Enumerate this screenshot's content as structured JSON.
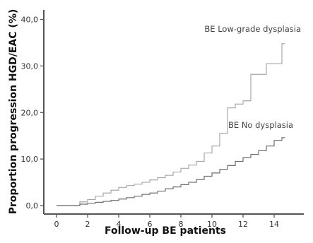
{
  "chart_data": {
    "type": "line",
    "title": "",
    "xlabel": "Follow-up BE patients",
    "ylabel": "Proportion progression HGD/EAC (%)",
    "xlim": [
      -0.3,
      14.9
    ],
    "ylim": [
      0,
      42
    ],
    "xticks": [
      0,
      2,
      4,
      6,
      8,
      10,
      12,
      14
    ],
    "xtick_labels": [
      "0",
      "2",
      "4",
      "6",
      "8",
      "10",
      "12",
      "14"
    ],
    "yticks": [
      0,
      10,
      20,
      30,
      40
    ],
    "ytick_labels": [
      "0,0",
      "10,0",
      "20,0",
      "30,0",
      "40,0"
    ],
    "grid": false,
    "step": true,
    "series": [
      {
        "name": "BE Low-grade dysplasia",
        "color": "#a8a8a8",
        "x": [
          0,
          1.0,
          1.5,
          2.0,
          2.5,
          3.0,
          3.5,
          4.0,
          4.5,
          5.0,
          5.5,
          6.0,
          6.5,
          7.0,
          7.5,
          8.0,
          8.5,
          9.0,
          9.5,
          10.0,
          10.5,
          11.0,
          11.5,
          12.0,
          12.5,
          13.0,
          13.5,
          14.0,
          14.5,
          14.7
        ],
        "y": [
          0,
          0,
          0.8,
          1.3,
          2.0,
          2.7,
          3.3,
          3.9,
          4.3,
          4.6,
          5.0,
          5.5,
          6.0,
          6.5,
          7.2,
          8.0,
          8.7,
          9.5,
          11.3,
          12.8,
          15.5,
          21.0,
          21.8,
          22.5,
          28.2,
          28.2,
          30.5,
          30.5,
          34.8,
          34.8
        ]
      },
      {
        "name": "BE No dysplasia",
        "color": "#6e6e6e",
        "x": [
          0,
          1.5,
          2.0,
          2.5,
          3.0,
          3.5,
          4.0,
          4.5,
          5.0,
          5.5,
          6.0,
          6.5,
          7.0,
          7.5,
          8.0,
          8.5,
          9.0,
          9.5,
          10.0,
          10.5,
          11.0,
          11.5,
          12.0,
          12.5,
          13.0,
          13.5,
          14.0,
          14.5,
          14.7
        ],
        "y": [
          0,
          0.3,
          0.5,
          0.7,
          0.9,
          1.1,
          1.4,
          1.7,
          2.0,
          2.4,
          2.7,
          3.1,
          3.6,
          4.0,
          4.5,
          5.0,
          5.6,
          6.3,
          7.0,
          7.8,
          8.6,
          9.5,
          10.3,
          11.0,
          11.8,
          12.8,
          14.0,
          14.6,
          14.6
        ]
      }
    ]
  }
}
